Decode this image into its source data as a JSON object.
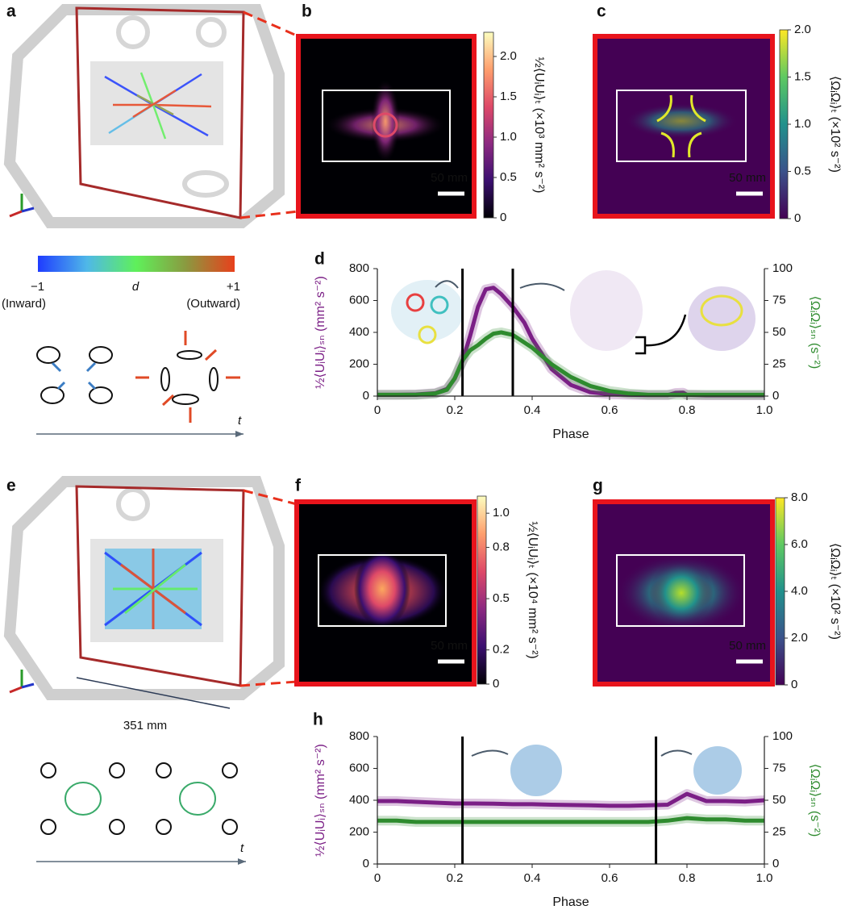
{
  "panel_labels": [
    "a",
    "b",
    "c",
    "d",
    "e",
    "f",
    "g",
    "h"
  ],
  "direction_legend": {
    "min": "−1",
    "mid": "d",
    "max": "+1",
    "min_note": "(Inward)",
    "max_note": "(Outward)",
    "colors": [
      "#1f3cff",
      "#4fb8e8",
      "#5ff05a",
      "#8a9a40",
      "#e8401c"
    ]
  },
  "time_labels": [
    "t",
    "t"
  ],
  "size_label": "351 mm",
  "colorbars": [
    {
      "panel": "b",
      "label": "½⟨UᵢUᵢ⟩ₜ (×10³ mm² s⁻²)",
      "lim": [
        0,
        2.3
      ],
      "ticks": [
        0,
        0.5,
        {
          "value": 1,
          "label": "1.0"
        },
        1.5,
        {
          "value": 2,
          "label": "2.0"
        }
      ],
      "colors": [
        "#000004",
        "#3b0f70",
        "#8c2981",
        "#de4968",
        "#fe9f6d",
        "#fcfdbf"
      ],
      "scale_bar": "50 mm"
    },
    {
      "panel": "c",
      "label": "⟨ΩᵢΩᵢ⟩ₜ (×10² s⁻²)",
      "lim": [
        0,
        2.0
      ],
      "ticks": [
        0,
        0.5,
        {
          "value": 1,
          "label": "1.0"
        },
        1.5,
        {
          "value": 2,
          "label": "2.0"
        }
      ],
      "colors": [
        "#440154",
        "#3b528b",
        "#21918c",
        "#5ec962",
        "#fde725"
      ],
      "scale_bar": "50 mm"
    },
    {
      "panel": "f",
      "label": "½⟨UᵢUᵢ⟩ₜ (×10⁴ mm² s⁻²)",
      "lim": [
        0,
        1.1
      ],
      "ticks": [
        0,
        0.2,
        0.5,
        0.8,
        {
          "value": 1,
          "label": "1.0"
        }
      ],
      "colors": [
        "#000004",
        "#3b0f70",
        "#8c2981",
        "#de4968",
        "#fe9f6d",
        "#fcfdbf"
      ],
      "scale_bar": "50 mm"
    },
    {
      "panel": "g",
      "label": "⟨ΩᵢΩᵢ⟩ₜ (×10² s⁻²)",
      "lim": [
        0,
        8.0
      ],
      "ticks": [
        0,
        {
          "value": 2,
          "label": "2.0"
        },
        {
          "value": 4,
          "label": "4.0"
        },
        {
          "value": 6,
          "label": "6.0"
        },
        {
          "value": 8,
          "label": "8.0"
        }
      ],
      "colors": [
        "#440154",
        "#3b528b",
        "#21918c",
        "#5ec962",
        "#fde725"
      ],
      "scale_bar": "50 mm"
    }
  ],
  "chart_data": [
    {
      "type": "line",
      "x_label": "Phase",
      "y_label": "½⟨UᵢUᵢ⟩ₛₙ (mm² s⁻²)",
      "y2_label": "⟨ΩᵢΩᵢ⟩ₛₙ (s⁻²)",
      "x": [
        0,
        0.05,
        0.1,
        0.15,
        0.18,
        0.2,
        0.22,
        0.24,
        0.26,
        0.28,
        0.3,
        0.32,
        0.35,
        0.38,
        0.4,
        0.45,
        0.5,
        0.55,
        0.6,
        0.65,
        0.7,
        0.75,
        0.77,
        0.79,
        0.8,
        0.85,
        0.9,
        0.95,
        1.0
      ],
      "series": [
        {
          "name": "½⟨UᵢUᵢ⟩ₛₙ",
          "color": "#7b1f86",
          "values": [
            8,
            8,
            10,
            18,
            45,
            110,
            220,
            380,
            560,
            670,
            680,
            640,
            560,
            460,
            360,
            170,
            70,
            25,
            12,
            8,
            6,
            6,
            20,
            22,
            8,
            5,
            5,
            5,
            5
          ]
        },
        {
          "name": "⟨ΩᵢΩᵢ⟩ₛₙ",
          "color": "#2e8b2e",
          "axis": "y2",
          "values": [
            1,
            1,
            1,
            2,
            5,
            14,
            28,
            36,
            40,
            45,
            49,
            50,
            48,
            42,
            38,
            25,
            15,
            8,
            4,
            2,
            1,
            1,
            1,
            1,
            1,
            1,
            1,
            1,
            1
          ]
        }
      ],
      "vlines": [
        0.22,
        0.35
      ],
      "xlim": [
        0,
        1
      ],
      "xticks": [
        0,
        0.2,
        0.4,
        0.6,
        0.8,
        {
          "value": 1,
          "label": "1.0"
        }
      ],
      "ylim": [
        0,
        800
      ],
      "yticks": [
        0,
        200,
        400,
        600,
        800
      ],
      "y2lim": [
        0,
        100
      ],
      "y2ticks": [
        0,
        25,
        50,
        75,
        100
      ]
    },
    {
      "type": "line",
      "x_label": "Phase",
      "y_label": "½⟨UᵢUᵢ⟩ₛₙ (mm² s⁻²)",
      "y2_label": "⟨ΩᵢΩᵢ⟩ₛₙ (s⁻²)",
      "x": [
        0,
        0.05,
        0.1,
        0.15,
        0.2,
        0.25,
        0.3,
        0.35,
        0.4,
        0.45,
        0.5,
        0.55,
        0.6,
        0.65,
        0.7,
        0.75,
        0.8,
        0.85,
        0.9,
        0.95,
        1.0
      ],
      "series": [
        {
          "name": "½⟨UᵢUᵢ⟩ₛₙ",
          "color": "#7b1f86",
          "values": [
            395,
            395,
            390,
            385,
            380,
            380,
            378,
            375,
            375,
            372,
            370,
            368,
            365,
            365,
            368,
            372,
            440,
            395,
            395,
            392,
            400
          ]
        },
        {
          "name": "⟨ΩᵢΩᵢ⟩ₛₙ",
          "color": "#2e8b2e",
          "axis": "y2",
          "values": [
            34,
            34,
            33,
            33,
            33,
            33,
            33,
            33,
            33,
            33,
            33,
            33,
            33,
            33,
            33,
            34,
            36,
            35,
            35,
            34,
            34
          ]
        }
      ],
      "vlines": [
        0.22,
        0.72
      ],
      "xlim": [
        0,
        1
      ],
      "xticks": [
        0,
        0.2,
        0.4,
        0.6,
        0.8,
        {
          "value": 1,
          "label": "1.0"
        }
      ],
      "ylim": [
        0,
        800
      ],
      "yticks": [
        0,
        200,
        400,
        600,
        800
      ],
      "y2lim": [
        0,
        100
      ],
      "y2ticks": [
        0,
        25,
        50,
        75,
        100
      ]
    }
  ]
}
